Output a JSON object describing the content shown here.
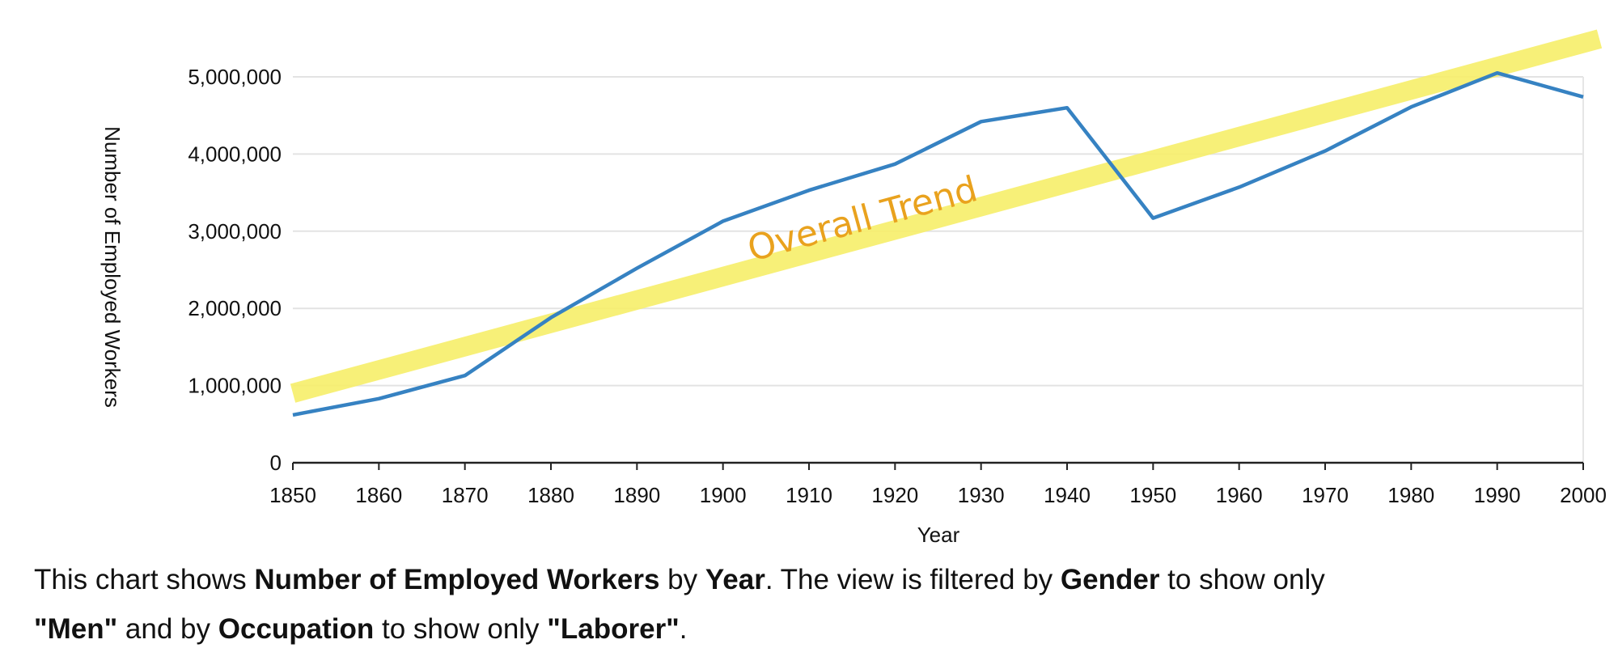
{
  "chart_data": {
    "type": "line",
    "xlabel": "Year",
    "ylabel": "Number of Employed Workers",
    "x": [
      1850,
      1860,
      1870,
      1880,
      1890,
      1900,
      1910,
      1920,
      1930,
      1940,
      1950,
      1960,
      1970,
      1980,
      1990,
      2000
    ],
    "xlim": [
      1850,
      2000
    ],
    "ylim": [
      0,
      5000000
    ],
    "x_ticks": [
      "1850",
      "1860",
      "1870",
      "1880",
      "1890",
      "1900",
      "1910",
      "1920",
      "1930",
      "1940",
      "1950",
      "1960",
      "1970",
      "1980",
      "1990",
      "2000"
    ],
    "y_ticks": [
      "0",
      "1,000,000",
      "2,000,000",
      "3,000,000",
      "4,000,000",
      "5,000,000"
    ],
    "y_tick_values": [
      0,
      1000000,
      2000000,
      3000000,
      4000000,
      5000000
    ],
    "grid": true,
    "series": [
      {
        "values": [
          620000,
          830000,
          1130000,
          1880000,
          2520000,
          3130000,
          3530000,
          3870000,
          4420000,
          4600000,
          3170000,
          3570000,
          4040000,
          4610000,
          5050000,
          4740000
        ],
        "color": "#3682c2"
      }
    ],
    "annotations": [
      {
        "text": "Overall Trend",
        "type": "trend-line",
        "color": "#f7ef6a",
        "text_color": "#e9a21e",
        "start": [
          1850,
          900000
        ],
        "end": [
          2000,
          5450000
        ]
      }
    ]
  },
  "caption": {
    "line1": [
      {
        "t": "This chart shows ",
        "b": false
      },
      {
        "t": "Number of Employed Workers",
        "b": true
      },
      {
        "t": " by ",
        "b": false
      },
      {
        "t": "Year",
        "b": true
      },
      {
        "t": ". The view is filtered by ",
        "b": false
      },
      {
        "t": "Gender",
        "b": true
      },
      {
        "t": " to show only",
        "b": false
      }
    ],
    "line2": [
      {
        "t": "\"Men\"",
        "b": true
      },
      {
        "t": " and by ",
        "b": false
      },
      {
        "t": "Occupation",
        "b": true
      },
      {
        "t": " to show only ",
        "b": false
      },
      {
        "t": "\"Laborer\"",
        "b": true
      },
      {
        "t": ".",
        "b": false
      }
    ]
  }
}
